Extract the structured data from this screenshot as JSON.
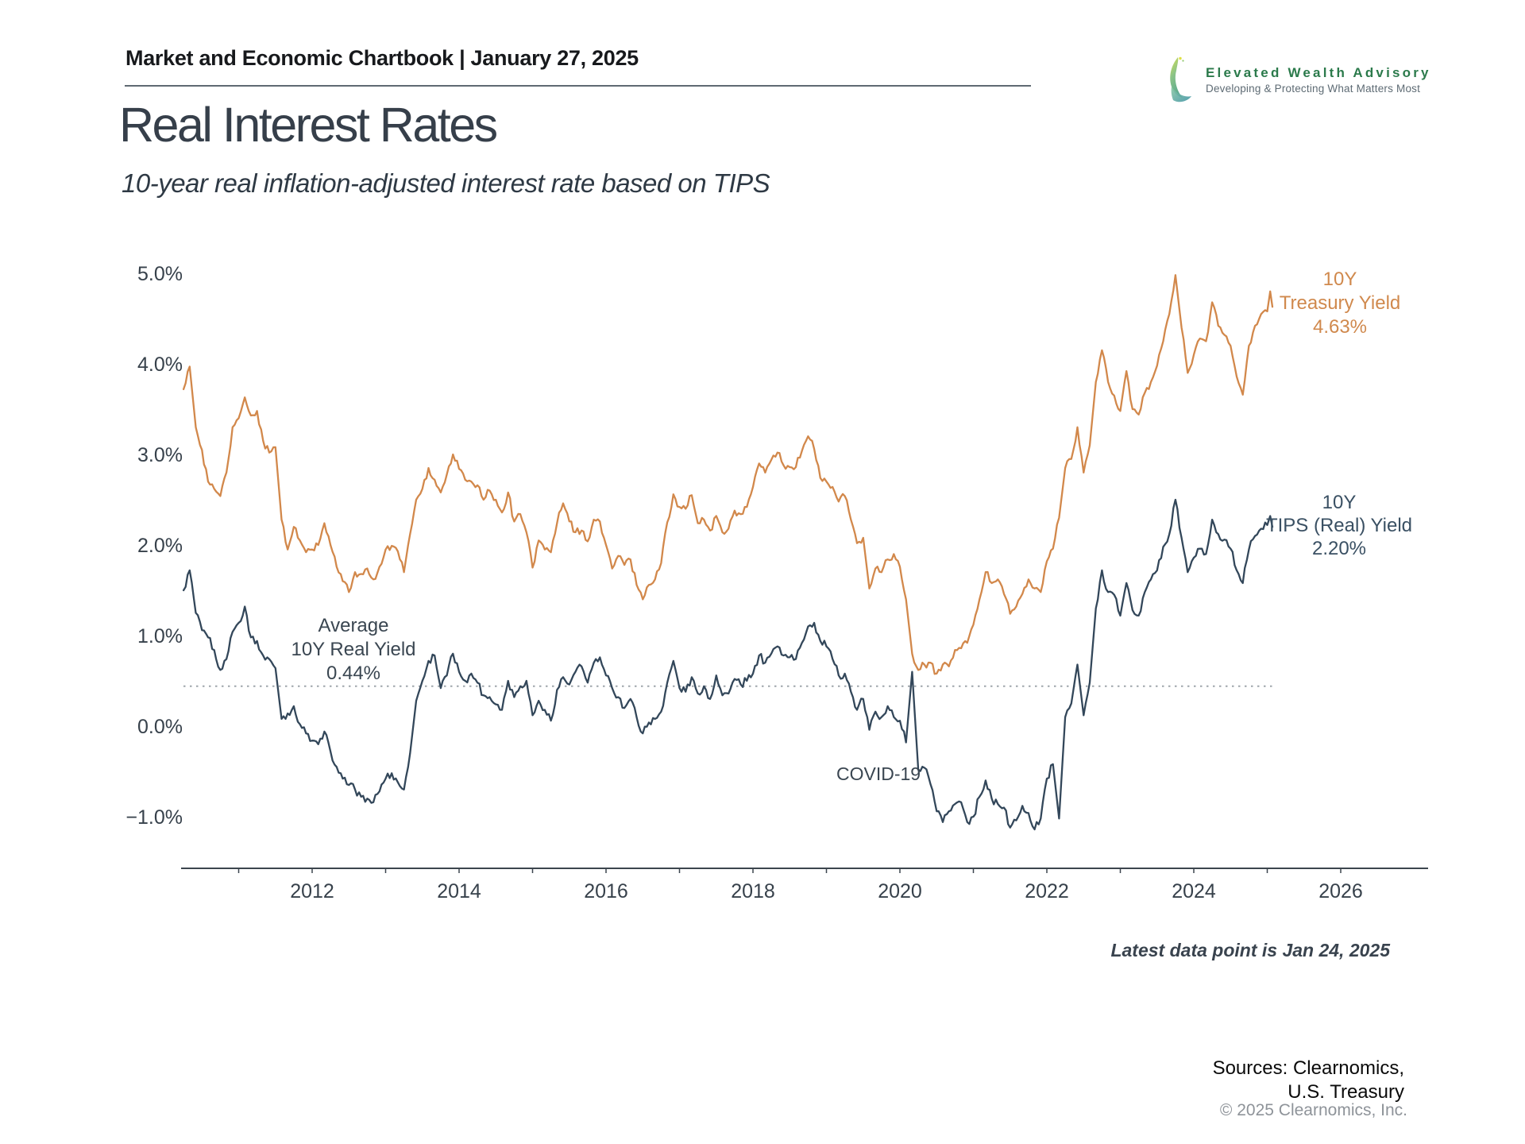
{
  "header": {
    "chartbook": "Market and Economic Chartbook | January 27, 2025"
  },
  "logo": {
    "name": "Elevated Wealth Advisory",
    "tagline": "Developing & Protecting What Matters Most"
  },
  "title": "Real Interest Rates",
  "subtitle": "10-year real inflation-adjusted interest rate based on TIPS",
  "chart_data": {
    "type": "line",
    "title": "Real Interest Rates",
    "x_axis": {
      "range": [
        2010.1,
        2027.1
      ],
      "ticks": [
        2012,
        2014,
        2016,
        2018,
        2020,
        2022,
        2024,
        2026
      ]
    },
    "y_axis": {
      "range": [
        -1.6,
        5.2
      ],
      "tick_values": [
        5,
        4,
        3,
        2,
        1,
        0,
        -1
      ],
      "tick_labels": [
        "5.0%",
        "4.0%",
        "3.0%",
        "2.0%",
        "1.0%",
        "0.0%",
        "−1.0%"
      ]
    },
    "average_line": {
      "value": 0.44,
      "style": "dotted",
      "color": "#9fa6ac"
    },
    "series": [
      {
        "id": "treasury-series",
        "name": "10Y Treasury Yield",
        "color": "#d2884b",
        "latest_value": "4.63%",
        "start_year": 2010.25,
        "points_per_year": 12,
        "values": [
          3.72,
          3.97,
          3.3,
          3.05,
          2.7,
          2.62,
          2.54,
          2.8,
          3.3,
          3.4,
          3.63,
          3.43,
          3.48,
          3.15,
          3.02,
          3.08,
          2.28,
          1.95,
          2.2,
          2.05,
          1.92,
          1.95,
          2.0,
          2.24,
          2.0,
          1.76,
          1.6,
          1.48,
          1.7,
          1.68,
          1.74,
          1.62,
          1.76,
          1.95,
          1.99,
          1.93,
          1.7,
          2.12,
          2.5,
          2.62,
          2.85,
          2.72,
          2.58,
          2.78,
          3.0,
          2.84,
          2.72,
          2.7,
          2.66,
          2.5,
          2.6,
          2.5,
          2.36,
          2.58,
          2.26,
          2.34,
          2.14,
          1.75,
          2.05,
          1.95,
          1.92,
          2.24,
          2.46,
          2.26,
          2.14,
          2.16,
          2.04,
          2.28,
          2.26,
          2.0,
          1.74,
          1.88,
          1.78,
          1.84,
          1.56,
          1.4,
          1.56,
          1.62,
          1.8,
          2.25,
          2.56,
          2.42,
          2.4,
          2.55,
          2.24,
          2.28,
          2.16,
          2.32,
          2.14,
          2.18,
          2.38,
          2.34,
          2.42,
          2.64,
          2.9,
          2.8,
          2.94,
          3.02,
          2.88,
          2.86,
          2.86,
          3.04,
          3.2,
          3.06,
          2.74,
          2.7,
          2.64,
          2.48,
          2.54,
          2.28,
          2.02,
          2.08,
          1.52,
          1.74,
          1.7,
          1.84,
          1.9,
          1.76,
          1.4,
          0.8,
          0.62,
          0.68,
          0.7,
          0.58,
          0.68,
          0.66,
          0.84,
          0.86,
          0.92,
          1.12,
          1.4,
          1.7,
          1.58,
          1.62,
          1.46,
          1.24,
          1.32,
          1.46,
          1.62,
          1.52,
          1.48,
          1.82,
          1.96,
          2.3,
          2.85,
          2.95,
          3.3,
          2.8,
          3.1,
          3.8,
          4.15,
          3.8,
          3.65,
          3.48,
          3.92,
          3.5,
          3.44,
          3.68,
          3.8,
          3.98,
          4.25,
          4.55,
          4.98,
          4.4,
          3.9,
          4.1,
          4.28,
          4.25,
          4.68,
          4.42,
          4.32,
          4.2,
          3.86,
          3.66,
          4.2,
          4.42,
          4.55,
          4.58
        ],
        "tail": [
          [
            2025.04,
            4.8
          ],
          [
            2025.07,
            4.63
          ]
        ]
      },
      {
        "id": "tips-series",
        "name": "10Y TIPS (Real) Yield",
        "color": "#33475a",
        "latest_value": "2.20%",
        "start_year": 2010.25,
        "points_per_year": 12,
        "values": [
          1.5,
          1.72,
          1.25,
          1.06,
          0.98,
          0.84,
          0.62,
          0.74,
          1.04,
          1.14,
          1.32,
          0.98,
          0.94,
          0.78,
          0.74,
          0.64,
          0.08,
          0.14,
          0.22,
          0.02,
          -0.08,
          -0.16,
          -0.2,
          -0.06,
          -0.28,
          -0.45,
          -0.58,
          -0.65,
          -0.7,
          -0.78,
          -0.8,
          -0.84,
          -0.72,
          -0.58,
          -0.52,
          -0.62,
          -0.7,
          -0.3,
          0.28,
          0.5,
          0.72,
          0.78,
          0.42,
          0.56,
          0.8,
          0.6,
          0.5,
          0.58,
          0.48,
          0.34,
          0.32,
          0.24,
          0.18,
          0.5,
          0.32,
          0.44,
          0.5,
          0.12,
          0.28,
          0.18,
          0.06,
          0.4,
          0.54,
          0.46,
          0.6,
          0.66,
          0.48,
          0.7,
          0.76,
          0.56,
          0.42,
          0.32,
          0.2,
          0.3,
          0.1,
          -0.08,
          0.04,
          0.08,
          0.16,
          0.48,
          0.72,
          0.42,
          0.38,
          0.54,
          0.36,
          0.44,
          0.3,
          0.56,
          0.34,
          0.36,
          0.52,
          0.46,
          0.5,
          0.58,
          0.78,
          0.7,
          0.8,
          0.88,
          0.78,
          0.76,
          0.74,
          0.92,
          1.1,
          1.14,
          0.94,
          0.88,
          0.74,
          0.56,
          0.58,
          0.38,
          0.18,
          0.3,
          -0.04,
          0.16,
          0.1,
          0.22,
          0.1,
          0.06,
          -0.18,
          0.6,
          -0.48,
          -0.46,
          -0.64,
          -0.94,
          -1.06,
          -0.94,
          -0.86,
          -0.84,
          -1.06,
          -1.0,
          -0.78,
          -0.6,
          -0.8,
          -0.86,
          -0.9,
          -1.12,
          -1.04,
          -0.88,
          -0.96,
          -1.14,
          -1.02,
          -0.58,
          -0.42,
          -1.02,
          0.1,
          0.25,
          0.68,
          0.12,
          0.48,
          1.3,
          1.72,
          1.48,
          1.45,
          1.22,
          1.58,
          1.28,
          1.22,
          1.48,
          1.62,
          1.72,
          1.98,
          2.12,
          2.5,
          2.08,
          1.7,
          1.86,
          1.96,
          1.9,
          2.28,
          2.12,
          2.06,
          1.96,
          1.72,
          1.58,
          1.95,
          2.1,
          2.18,
          2.22
        ],
        "tail": [
          [
            2025.04,
            2.32
          ],
          [
            2025.07,
            2.2
          ]
        ]
      }
    ],
    "annotations": {
      "average": {
        "line1": "Average",
        "line2": "10Y Real Yield",
        "line3": "0.44%"
      },
      "covid": "COVID-19",
      "treasury_label": {
        "line1": "10Y",
        "line2": "Treasury Yield",
        "line3": "4.63%"
      },
      "tips_label": {
        "line1": "10Y",
        "line2": "TIPS (Real) Yield",
        "line3": "2.20%"
      }
    },
    "legend_position": "right-of-lines",
    "grid": false
  },
  "footer": {
    "latest": "Latest data point is Jan 24, 2025",
    "sources_line1": "Sources: Clearnomics,",
    "sources_line2": "U.S. Treasury",
    "copyright": "© 2025 Clearnomics, Inc."
  }
}
